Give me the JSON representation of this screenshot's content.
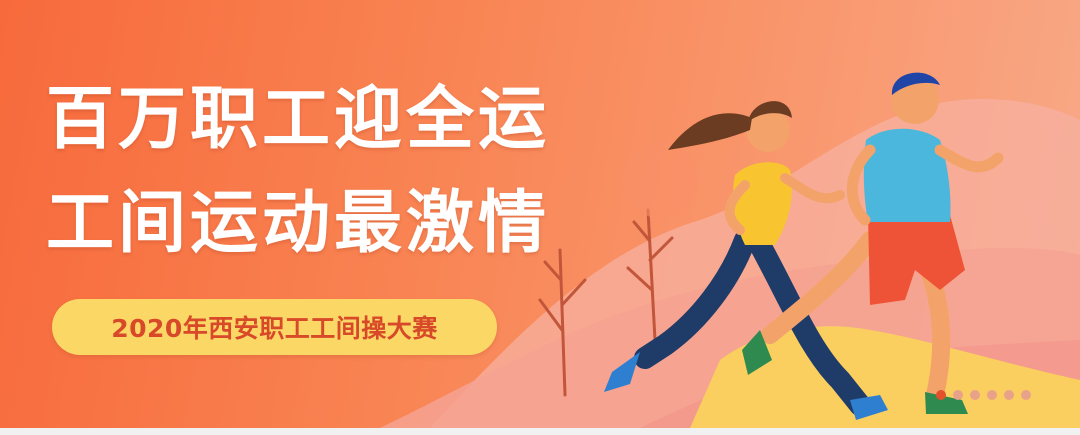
{
  "banner": {
    "headline_line1": "百万职工迎全运",
    "headline_line2": "工间运动最激情",
    "subtitle": "2020年西安职工工间操大赛"
  },
  "carousel": {
    "slide_count": 6,
    "active_index": 0
  },
  "colors": {
    "background": "#f76a3c",
    "headline_text": "#ffffff",
    "pill_background": "#fbd866",
    "pill_text": "#d8492a",
    "indicator_active": "#e3512c",
    "indicator_inactive": "#e9a28a"
  },
  "illustration": {
    "figures": [
      "female-runner-icon",
      "male-runner-icon"
    ],
    "decor": [
      "bare-tree-icon",
      "hill-icon"
    ]
  }
}
